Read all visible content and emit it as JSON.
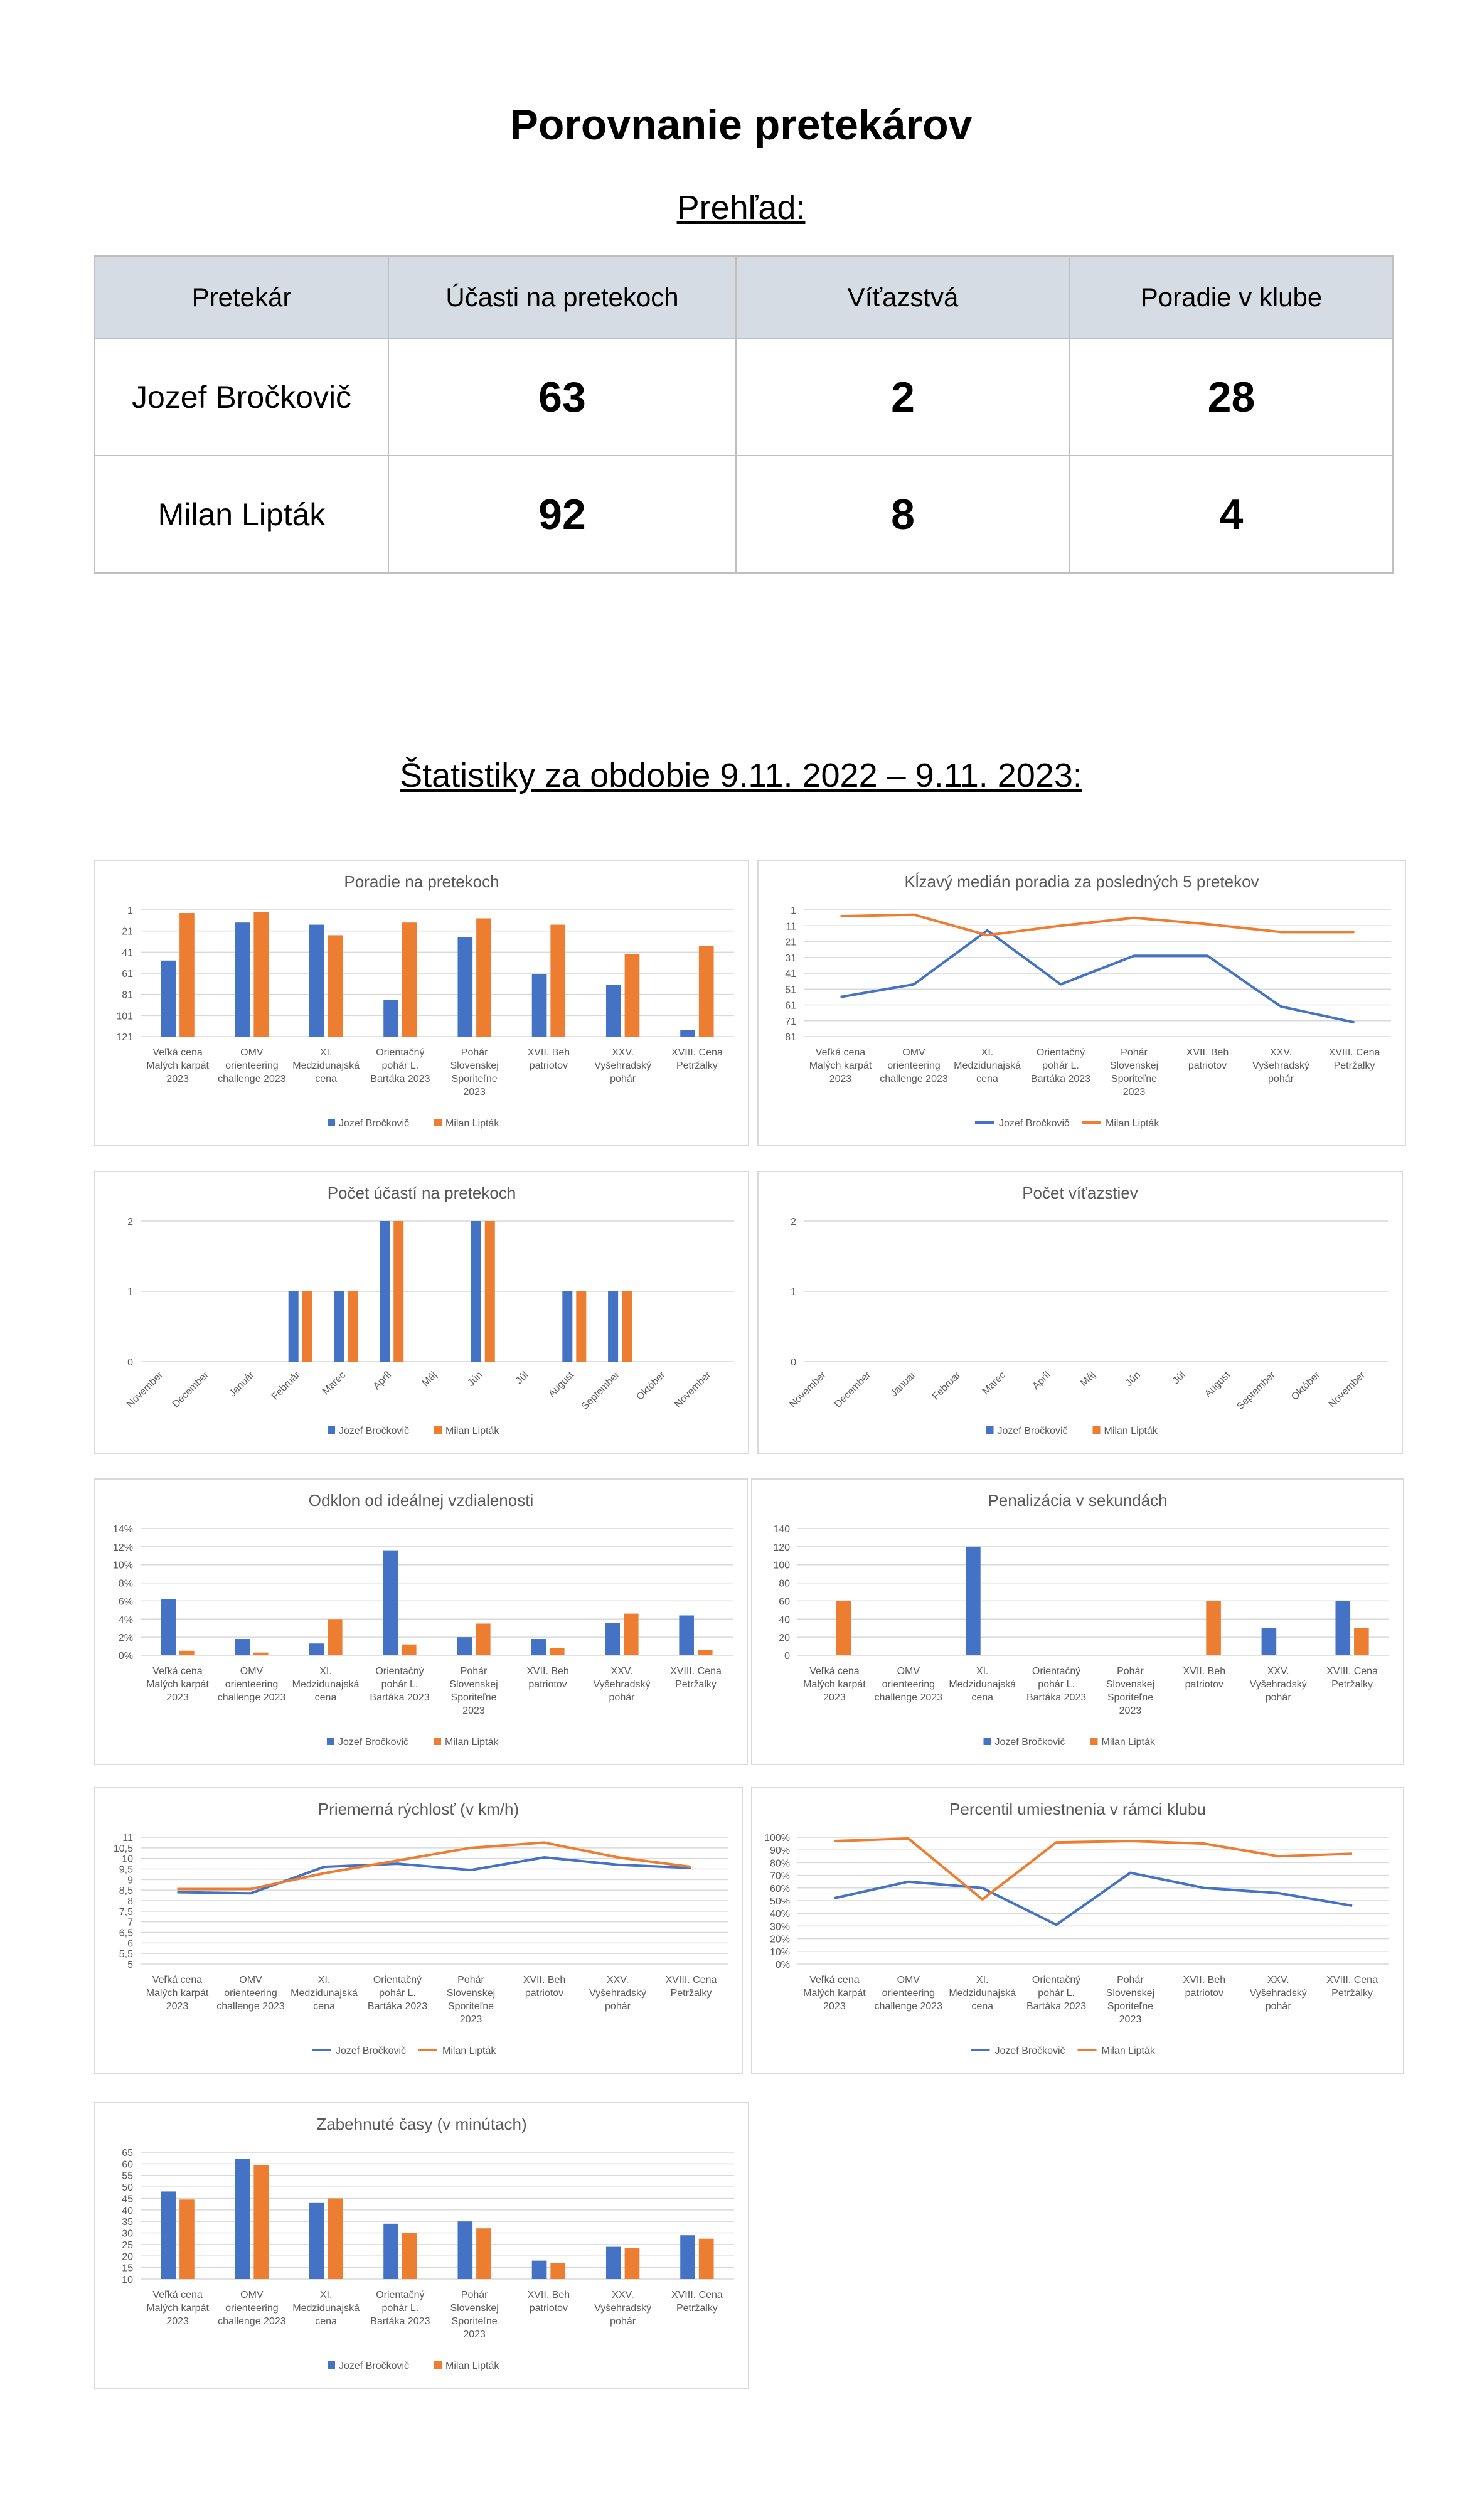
{
  "page": {
    "title": "Porovnanie pretekárov",
    "overview_label": "Prehľad:",
    "stats_label": "Štatistiky za obdobie 9.11. 2022 – 9.11. 2023:"
  },
  "table": {
    "headers": [
      "Pretekár",
      "Účasti na pretekoch",
      "Víťazstvá",
      "Poradie v klube"
    ],
    "rows": [
      {
        "name": "Jozef Bročkovič",
        "participations": "63",
        "wins": "2",
        "rank": "28"
      },
      {
        "name": "Milan Lipták",
        "participations": "92",
        "wins": "8",
        "rank": "4"
      }
    ]
  },
  "colors": {
    "series1": "#4472c4",
    "series2": "#ed7d31"
  },
  "chart_data": [
    {
      "id": "c1",
      "type": "bar",
      "title": "Poradie na pretekoch",
      "y_ticks": [
        "1",
        "21",
        "41",
        "61",
        "81",
        "101",
        "121"
      ],
      "ylim": [
        1,
        121
      ],
      "y_reversed": true,
      "categories": [
        [
          "Veľká cena",
          "Malých karpát",
          "2023"
        ],
        [
          "OMV",
          "orienteering",
          "challenge 2023"
        ],
        [
          "XI.",
          "Medzidunajská",
          "cena"
        ],
        [
          "Orientačný",
          "pohár L.",
          "Bartáka 2023"
        ],
        [
          "Pohár",
          "Slovenskej",
          "Sporiteľne",
          "2023"
        ],
        [
          "XVII. Beh",
          "patriotov"
        ],
        [
          "XXV.",
          "Vyšehradský",
          "pohár"
        ],
        [
          "XVIII. Cena",
          "Petržalky"
        ]
      ],
      "series": [
        {
          "name": "Jozef Bročkovič",
          "values": [
            49,
            13,
            15,
            86,
            27,
            62,
            72,
            115
          ]
        },
        {
          "name": "Milan Lipták",
          "values": [
            4,
            3,
            25,
            13,
            9,
            15,
            43,
            35
          ]
        }
      ]
    },
    {
      "id": "c2",
      "type": "line",
      "title": "Kĺzavý medián poradia za posledných 5 pretekov",
      "y_ticks": [
        "1",
        "11",
        "21",
        "31",
        "41",
        "51",
        "61",
        "71",
        "81"
      ],
      "ylim": [
        1,
        81
      ],
      "y_reversed": true,
      "categories": [
        [
          "Veľká cena",
          "Malých karpát",
          "2023"
        ],
        [
          "OMV",
          "orienteering",
          "challenge 2023"
        ],
        [
          "XI.",
          "Medzidunajská",
          "cena"
        ],
        [
          "Orientačný",
          "pohár L.",
          "Bartáka 2023"
        ],
        [
          "Pohár",
          "Slovenskej",
          "Sporiteľne",
          "2023"
        ],
        [
          "XVII. Beh",
          "patriotov"
        ],
        [
          "XXV.",
          "Vyšehradský",
          "pohár"
        ],
        [
          "XVIII. Cena",
          "Petržalky"
        ]
      ],
      "series": [
        {
          "name": "Jozef Bročkovič",
          "values": [
            56,
            48,
            14,
            48,
            30,
            30,
            62,
            72
          ]
        },
        {
          "name": "Milan Lipták",
          "values": [
            5,
            4,
            17,
            11,
            6,
            10,
            15,
            15
          ]
        }
      ]
    },
    {
      "id": "c3",
      "type": "bar",
      "title": "Počet účastí na pretekoch",
      "y_ticks": [
        "0",
        "1",
        "2"
      ],
      "ylim": [
        0,
        2
      ],
      "y_reversed": false,
      "rotated_labels": true,
      "categories": [
        [
          "November"
        ],
        [
          "December"
        ],
        [
          "Január"
        ],
        [
          "Február"
        ],
        [
          "Marec"
        ],
        [
          "Apríl"
        ],
        [
          "Máj"
        ],
        [
          "Jún"
        ],
        [
          "Júl"
        ],
        [
          "August"
        ],
        [
          "September"
        ],
        [
          "Október"
        ],
        [
          "November"
        ]
      ],
      "series": [
        {
          "name": "Jozef Bročkovič",
          "values": [
            0,
            0,
            0,
            1,
            1,
            2,
            0,
            2,
            0,
            1,
            1,
            0,
            0
          ]
        },
        {
          "name": "Milan Lipták",
          "values": [
            0,
            0,
            0,
            1,
            1,
            2,
            0,
            2,
            0,
            1,
            1,
            0,
            0
          ]
        }
      ]
    },
    {
      "id": "c4",
      "type": "bar",
      "title": "Počet víťazstiev",
      "y_ticks": [
        "0",
        "1",
        "2"
      ],
      "ylim": [
        0,
        2
      ],
      "y_reversed": false,
      "rotated_labels": true,
      "categories": [
        [
          "November"
        ],
        [
          "December"
        ],
        [
          "Január"
        ],
        [
          "Február"
        ],
        [
          "Marec"
        ],
        [
          "Apríl"
        ],
        [
          "Máj"
        ],
        [
          "Jún"
        ],
        [
          "Júl"
        ],
        [
          "August"
        ],
        [
          "September"
        ],
        [
          "Október"
        ],
        [
          "November"
        ]
      ],
      "series": [
        {
          "name": "Jozef Bročkovič",
          "values": [
            0,
            0,
            0,
            0,
            0,
            0,
            0,
            0,
            0,
            0,
            0,
            0,
            0
          ]
        },
        {
          "name": "Milan Lipták",
          "values": [
            0,
            0,
            0,
            0,
            0,
            0,
            0,
            0,
            0,
            0,
            0,
            0,
            0
          ]
        }
      ]
    },
    {
      "id": "c5",
      "type": "bar",
      "title": "Odklon od ideálnej vzdialenosti",
      "y_ticks": [
        "0%",
        "2%",
        "4%",
        "6%",
        "8%",
        "10%",
        "12%",
        "14%"
      ],
      "ylim": [
        0,
        14
      ],
      "y_reversed": false,
      "categories": [
        [
          "Veľká cena",
          "Malých karpát",
          "2023"
        ],
        [
          "OMV",
          "orienteering",
          "challenge 2023"
        ],
        [
          "XI.",
          "Medzidunajská",
          "cena"
        ],
        [
          "Orientačný",
          "pohár L.",
          "Bartáka 2023"
        ],
        [
          "Pohár",
          "Slovenskej",
          "Sporiteľne",
          "2023"
        ],
        [
          "XVII. Beh",
          "patriotov"
        ],
        [
          "XXV.",
          "Vyšehradský",
          "pohár"
        ],
        [
          "XVIII. Cena",
          "Petržalky"
        ]
      ],
      "series": [
        {
          "name": "Jozef Bročkovič",
          "values": [
            6.2,
            1.8,
            1.3,
            11.6,
            2.0,
            1.8,
            3.6,
            4.4
          ]
        },
        {
          "name": "Milan Lipták",
          "values": [
            0.5,
            0.3,
            4.0,
            1.2,
            3.5,
            0.8,
            4.6,
            0.6
          ]
        }
      ]
    },
    {
      "id": "c6",
      "type": "bar",
      "title": "Penalizácia v sekundách",
      "y_ticks": [
        "0",
        "20",
        "40",
        "60",
        "80",
        "100",
        "120",
        "140"
      ],
      "ylim": [
        0,
        140
      ],
      "y_reversed": false,
      "categories": [
        [
          "Veľká cena",
          "Malých karpát",
          "2023"
        ],
        [
          "OMV",
          "orienteering",
          "challenge 2023"
        ],
        [
          "XI.",
          "Medzidunajská",
          "cena"
        ],
        [
          "Orientačný",
          "pohár L.",
          "Bartáka 2023"
        ],
        [
          "Pohár",
          "Slovenskej",
          "Sporiteľne",
          "2023"
        ],
        [
          "XVII. Beh",
          "patriotov"
        ],
        [
          "XXV.",
          "Vyšehradský",
          "pohár"
        ],
        [
          "XVIII. Cena",
          "Petržalky"
        ]
      ],
      "series": [
        {
          "name": "Jozef Bročkovič",
          "values": [
            0,
            0,
            120,
            0,
            0,
            0,
            30,
            60
          ]
        },
        {
          "name": "Milan Lipták",
          "values": [
            60,
            0,
            0,
            0,
            0,
            60,
            0,
            30
          ]
        }
      ]
    },
    {
      "id": "c7",
      "type": "line",
      "title": "Priemerná rýchlosť (v km/h)",
      "y_ticks": [
        "5",
        "5,5",
        "6",
        "6,5",
        "7",
        "7,5",
        "8",
        "8,5",
        "9",
        "9,5",
        "10",
        "10,5",
        "11"
      ],
      "ylim": [
        5,
        11
      ],
      "y_reversed": false,
      "categories": [
        [
          "Veľká cena",
          "Malých karpát",
          "2023"
        ],
        [
          "OMV",
          "orienteering",
          "challenge 2023"
        ],
        [
          "XI.",
          "Medzidunajská",
          "cena"
        ],
        [
          "Orientačný",
          "pohár L.",
          "Bartáka 2023"
        ],
        [
          "Pohár",
          "Slovenskej",
          "Sporiteľne",
          "2023"
        ],
        [
          "XVII. Beh",
          "patriotov"
        ],
        [
          "XXV.",
          "Vyšehradský",
          "pohár"
        ],
        [
          "XVIII. Cena",
          "Petržalky"
        ]
      ],
      "series": [
        {
          "name": "Jozef Bročkovič",
          "values": [
            8.4,
            8.35,
            9.6,
            9.75,
            9.45,
            10.05,
            9.7,
            9.55
          ]
        },
        {
          "name": "Milan Lipták",
          "values": [
            8.55,
            8.55,
            9.3,
            9.9,
            10.5,
            10.75,
            10.05,
            9.6
          ]
        }
      ]
    },
    {
      "id": "c8",
      "type": "line",
      "title": "Percentil umiestnenia v rámci klubu",
      "y_ticks": [
        "0%",
        "10%",
        "20%",
        "30%",
        "40%",
        "50%",
        "60%",
        "70%",
        "80%",
        "90%",
        "100%"
      ],
      "ylim": [
        0,
        100
      ],
      "y_reversed": false,
      "categories": [
        [
          "Veľká cena",
          "Malých karpát",
          "2023"
        ],
        [
          "OMV",
          "orienteering",
          "challenge 2023"
        ],
        [
          "XI.",
          "Medzidunajská",
          "cena"
        ],
        [
          "Orientačný",
          "pohár L.",
          "Bartáka 2023"
        ],
        [
          "Pohár",
          "Slovenskej",
          "Sporiteľne",
          "2023"
        ],
        [
          "XVII. Beh",
          "patriotov"
        ],
        [
          "XXV.",
          "Vyšehradský",
          "pohár"
        ],
        [
          "XVIII. Cena",
          "Petržalky"
        ]
      ],
      "series": [
        {
          "name": "Jozef Bročkovič",
          "values": [
            52,
            65,
            60,
            31,
            72,
            60,
            56,
            46
          ]
        },
        {
          "name": "Milan Lipták",
          "values": [
            97,
            99,
            51,
            96,
            97,
            95,
            85,
            87
          ]
        }
      ]
    },
    {
      "id": "c9",
      "type": "bar",
      "title": "Zabehnuté časy (v minútach)",
      "y_ticks": [
        "10",
        "15",
        "20",
        "25",
        "30",
        "35",
        "40",
        "45",
        "50",
        "55",
        "60",
        "65"
      ],
      "ylim": [
        10,
        65
      ],
      "y_reversed": false,
      "categories": [
        [
          "Veľká cena",
          "Malých karpát",
          "2023"
        ],
        [
          "OMV",
          "orienteering",
          "challenge 2023"
        ],
        [
          "XI.",
          "Medzidunajská",
          "cena"
        ],
        [
          "Orientačný",
          "pohár L.",
          "Bartáka 2023"
        ],
        [
          "Pohár",
          "Slovenskej",
          "Sporiteľne",
          "2023"
        ],
        [
          "XVII. Beh",
          "patriotov"
        ],
        [
          "XXV.",
          "Vyšehradský",
          "pohár"
        ],
        [
          "XVIII. Cena",
          "Petržalky"
        ]
      ],
      "series": [
        {
          "name": "Jozef Bročkovič",
          "values": [
            48,
            62,
            43,
            34,
            35,
            18,
            24,
            29
          ]
        },
        {
          "name": "Milan Lipták",
          "values": [
            44.5,
            59.5,
            45,
            30,
            32,
            17,
            23.5,
            27.5
          ]
        }
      ]
    }
  ]
}
